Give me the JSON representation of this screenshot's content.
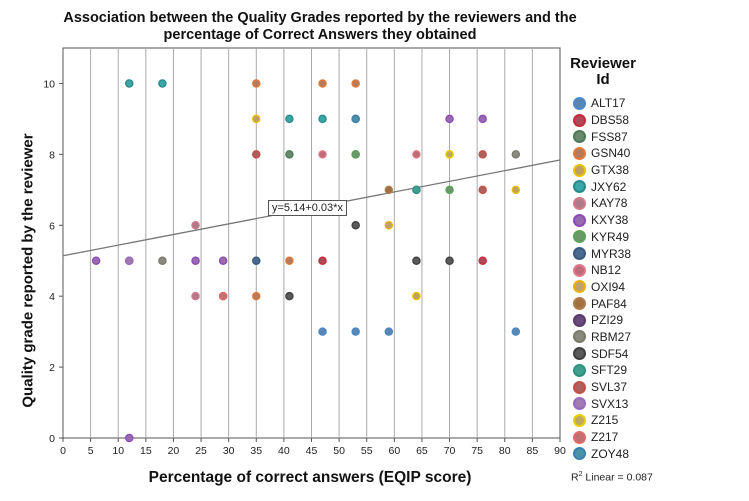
{
  "chart_data": {
    "type": "scatter",
    "title_line1": "Association between the Quality Grades reported by the reviewers and the",
    "title_line2": "percentage of Correct Answers they obtained",
    "xlabel": "Percentage of correct answers (EQIP score)",
    "ylabel": "Quality grade reported by the reviewer",
    "xlim": [
      0,
      90
    ],
    "ylim": [
      0,
      11
    ],
    "xticks": [
      "0",
      "5",
      "10",
      "15",
      "20",
      "25",
      "30",
      "35",
      "40",
      "45",
      "50",
      "55",
      "60",
      "65",
      "70",
      "75",
      "80",
      "85",
      "90"
    ],
    "yticks": [
      "0",
      "2",
      "4",
      "6",
      "8",
      "10"
    ],
    "grid": "vertical",
    "legend_title": "Reviewer Id",
    "legend_title_line1": "Reviewer",
    "legend_title_line2": "Id",
    "legend_position": "right",
    "fit_line": {
      "label": "y=5.14+0.03*x",
      "intercept": 5.14,
      "slope": 0.03,
      "r2_label": "Linear = 0.087",
      "r2_prefix": "R",
      "r2_sup": "2"
    },
    "series": [
      {
        "name": "ALT17",
        "fill": "#5a86b3",
        "edge": "#4a88c9",
        "points": [
          [
            47,
            3
          ],
          [
            53,
            3
          ],
          [
            59,
            3
          ],
          [
            82,
            3
          ]
        ]
      },
      {
        "name": "DBS58",
        "fill": "#b04a5a",
        "edge": "#c62a3a",
        "points": [
          [
            29,
            4
          ],
          [
            47,
            5
          ],
          [
            76,
            5
          ]
        ]
      },
      {
        "name": "FSS87",
        "fill": "#6a8a70",
        "edge": "#4a7a58",
        "points": [
          [
            41,
            8
          ],
          [
            53,
            8
          ]
        ]
      },
      {
        "name": "GSN40",
        "fill": "#b77a5a",
        "edge": "#e07a3a",
        "points": [
          [
            35,
            10
          ],
          [
            47,
            10
          ],
          [
            53,
            10
          ],
          [
            35,
            4
          ],
          [
            41,
            5
          ]
        ]
      },
      {
        "name": "GTX38",
        "fill": "#c0a060",
        "edge": "#e8c000",
        "points": [
          [
            35,
            9
          ],
          [
            70,
            8
          ],
          [
            82,
            7
          ],
          [
            64,
            4
          ]
        ]
      },
      {
        "name": "JXY62",
        "fill": "#3aa6a6",
        "edge": "#2a8a8a",
        "points": [
          [
            12,
            10
          ],
          [
            18,
            10
          ],
          [
            41,
            9
          ],
          [
            47,
            9
          ],
          [
            53,
            9
          ],
          [
            64,
            7
          ]
        ]
      },
      {
        "name": "KAY78",
        "fill": "#b07a8a",
        "edge": "#d07a8a",
        "points": [
          [
            24,
            6
          ],
          [
            24,
            4
          ]
        ]
      },
      {
        "name": "KXY38",
        "fill": "#9a6ab0",
        "edge": "#8a4ab8",
        "points": [
          [
            70,
            9
          ],
          [
            76,
            9
          ],
          [
            6,
            5
          ],
          [
            24,
            5
          ],
          [
            29,
            5
          ],
          [
            12,
            0
          ]
        ]
      },
      {
        "name": "KYR49",
        "fill": "#6a9a6a",
        "edge": "#5aa05a",
        "points": [
          [
            53,
            8
          ],
          [
            70,
            7
          ]
        ]
      },
      {
        "name": "MYR38",
        "fill": "#4a6a90",
        "edge": "#3a5a80",
        "points": [
          [
            35,
            5
          ]
        ]
      },
      {
        "name": "NB12",
        "fill": "#c06a7a",
        "edge": "#e07a8a",
        "points": [
          [
            47,
            8
          ],
          [
            64,
            8
          ]
        ]
      },
      {
        "name": "OXI94",
        "fill": "#c0a070",
        "edge": "#e8b000",
        "points": [
          [
            59,
            6
          ]
        ]
      },
      {
        "name": "PAF84",
        "fill": "#a07040",
        "edge": "#b07a4a",
        "points": [
          [
            59,
            7
          ]
        ]
      },
      {
        "name": "PZI29",
        "fill": "#6a4a7a",
        "edge": "#5a3a6a",
        "points": [
          [
            12,
            5
          ]
        ]
      },
      {
        "name": "RBM27",
        "fill": "#8a8a80",
        "edge": "#7a7a6a",
        "points": [
          [
            82,
            8
          ],
          [
            18,
            5
          ]
        ]
      },
      {
        "name": "SDF54",
        "fill": "#5a5a5a",
        "edge": "#404040",
        "points": [
          [
            53,
            6
          ],
          [
            64,
            5
          ],
          [
            70,
            5
          ],
          [
            41,
            4
          ]
        ]
      },
      {
        "name": "SFT29",
        "fill": "#40a090",
        "edge": "#309080",
        "points": [
          [
            64,
            7
          ]
        ]
      },
      {
        "name": "SVL37",
        "fill": "#b0605a",
        "edge": "#c0504a",
        "points": [
          [
            35,
            8
          ],
          [
            76,
            8
          ],
          [
            76,
            7
          ]
        ]
      },
      {
        "name": "SVX13",
        "fill": "#a07ab0",
        "edge": "#9a6ac0",
        "points": [
          [
            12,
            5
          ]
        ]
      },
      {
        "name": "Z215",
        "fill": "#c0a860",
        "edge": "#e8d000",
        "points": [
          [
            70,
            8
          ]
        ]
      },
      {
        "name": "Z217",
        "fill": "#c07070",
        "edge": "#e06a6a",
        "points": [
          [
            29,
            4
          ]
        ]
      },
      {
        "name": "ZOY48",
        "fill": "#4a90a8",
        "edge": "#3a80b0",
        "points": [
          [
            53,
            9
          ]
        ]
      }
    ]
  }
}
